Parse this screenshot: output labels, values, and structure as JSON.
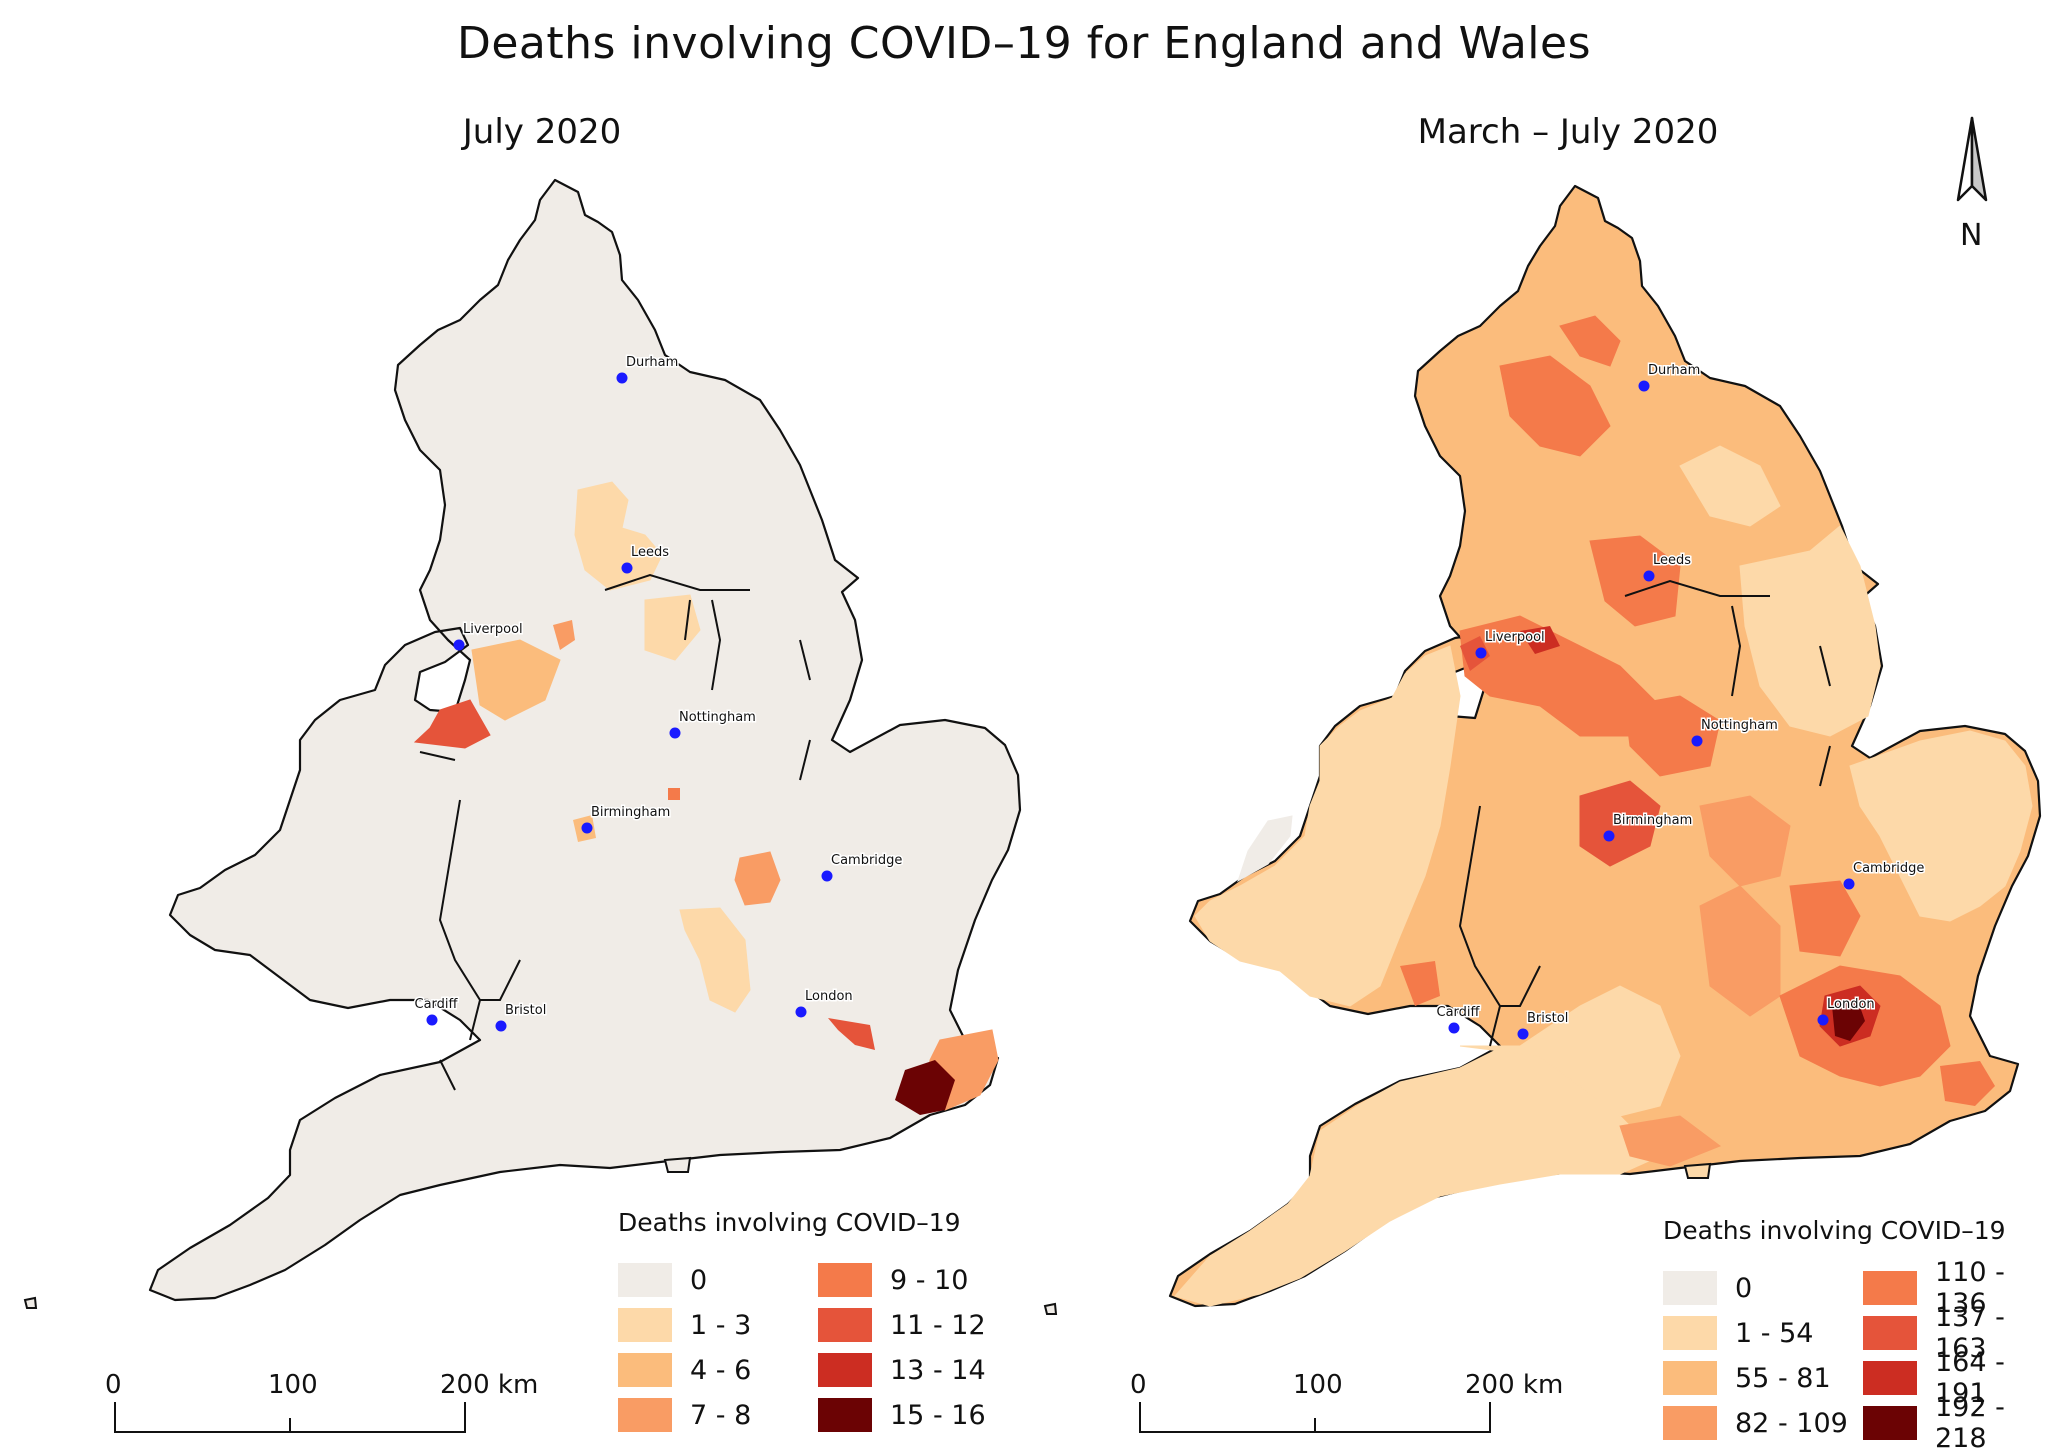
{
  "title": "Deaths involving COVID–19 for England and Wales",
  "maps": [
    {
      "id": "left",
      "subtitle": "July 2020",
      "legend_title": "Deaths involving COVID–19",
      "legend": [
        {
          "label": "0",
          "color": "#f0ece7"
        },
        {
          "label": "1 - 3",
          "color": "#fdd9a9"
        },
        {
          "label": "4 - 6",
          "color": "#fbbc7c"
        },
        {
          "label": "7 - 8",
          "color": "#f99c64"
        },
        {
          "label": "9 - 10",
          "color": "#f47a4a"
        },
        {
          "label": "11 - 12",
          "color": "#e5543a"
        },
        {
          "label": "13 - 14",
          "color": "#cc2d22"
        },
        {
          "label": "15 - 16",
          "color": "#6b0304"
        }
      ]
    },
    {
      "id": "right",
      "subtitle": "March – July 2020",
      "legend_title": "Deaths involving COVID–19",
      "legend": [
        {
          "label": "0",
          "color": "#f0ece7"
        },
        {
          "label": "1 - 54",
          "color": "#fdd9a9"
        },
        {
          "label": "55 - 81",
          "color": "#fbbc7c"
        },
        {
          "label": "82 - 109",
          "color": "#f99c64"
        },
        {
          "label": "110 - 136",
          "color": "#f47a4a"
        },
        {
          "label": "137 - 163",
          "color": "#e5543a"
        },
        {
          "label": "164 - 191",
          "color": "#cc2d22"
        },
        {
          "label": "192 - 218",
          "color": "#6b0304"
        }
      ]
    }
  ],
  "cities": [
    "Durham",
    "Leeds",
    "Liverpool",
    "Nottingham",
    "Birmingham",
    "Cambridge",
    "London",
    "Cardiff",
    "Bristol"
  ],
  "scale_bar": {
    "ticks": [
      "0",
      "100",
      "200 km"
    ]
  },
  "north_arrow": {
    "label": "N",
    "icon": "north-arrow-icon"
  },
  "city_marker_color": "#1a1aff"
}
